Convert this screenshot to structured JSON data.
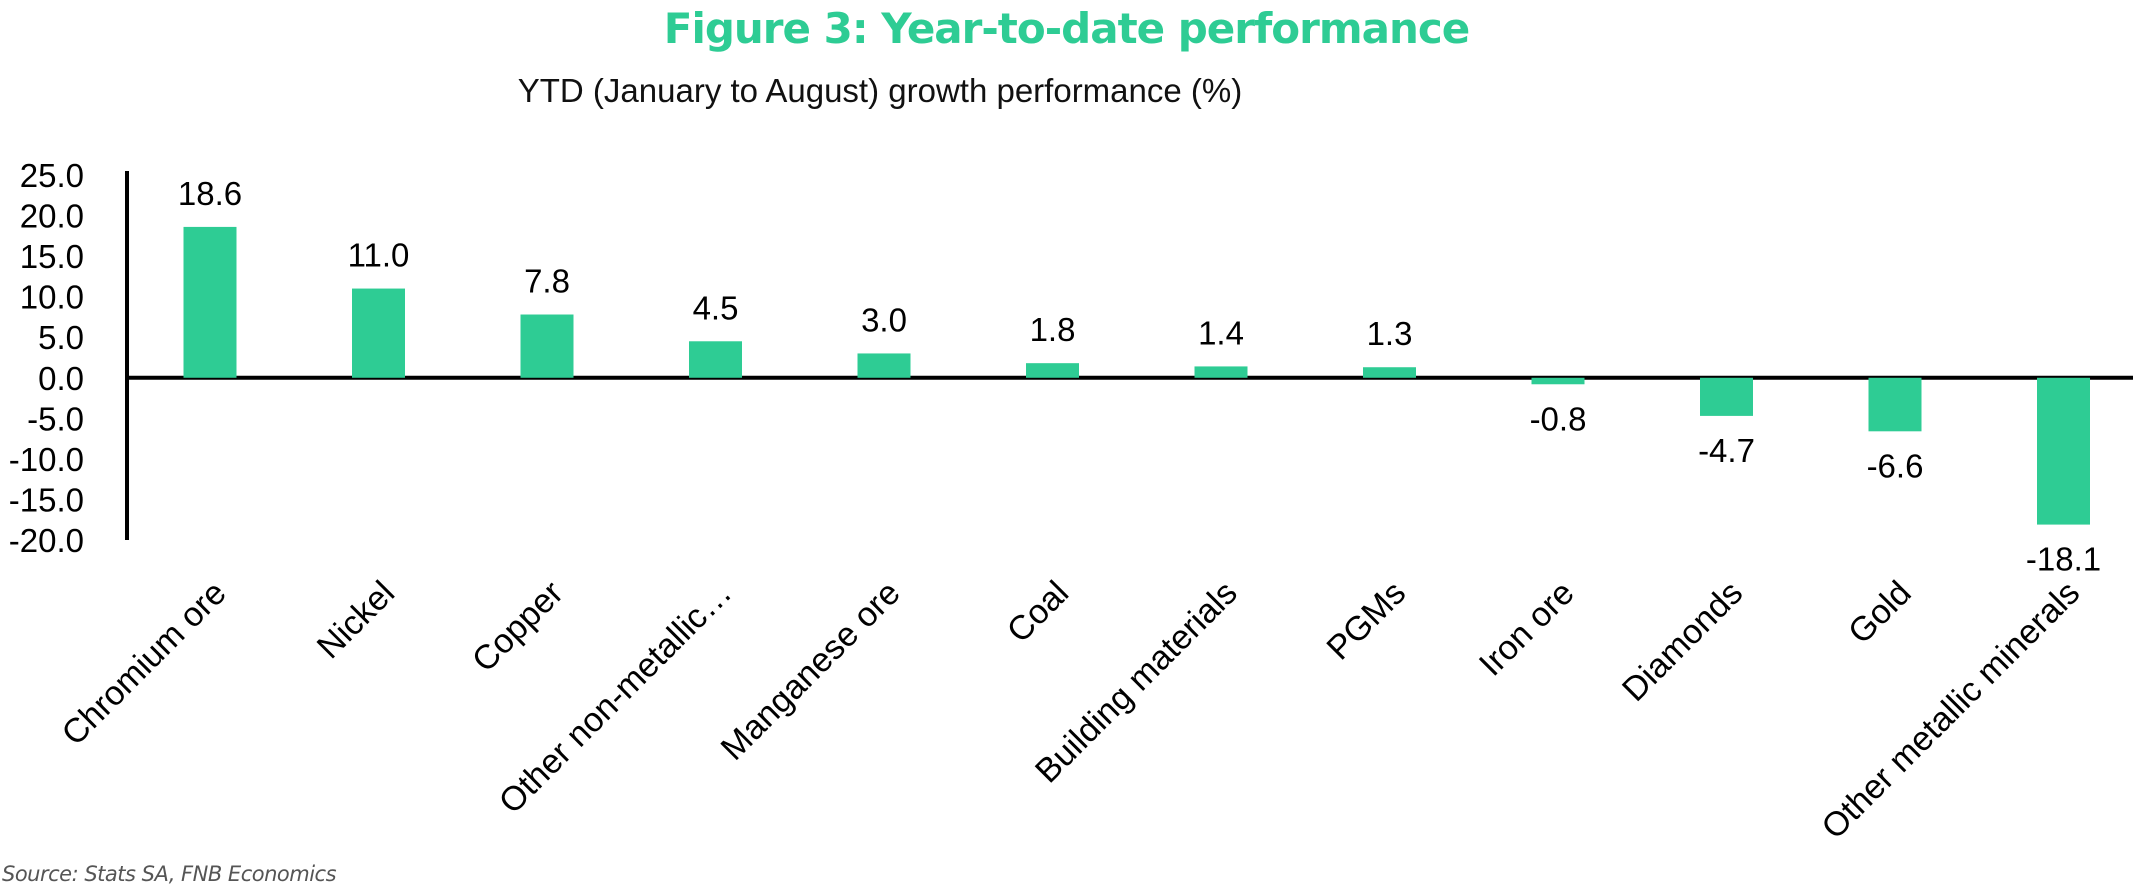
{
  "figure_title": "Figure 3: Year-to-date performance",
  "source": "Source: Stats SA, FNB Economics",
  "colors": {
    "accent": "#2ECC94",
    "bar": "#2ECC94",
    "axis": "#000000"
  },
  "chart_data": {
    "type": "bar",
    "title": "YTD (January to August) growth performance (%)",
    "xlabel": "",
    "ylabel": "",
    "ylim": [
      -20,
      25
    ],
    "yticks": [
      "25.0",
      "20.0",
      "15.0",
      "10.0",
      "5.0",
      "0.0",
      "-5.0",
      "-10.0",
      "-15.0",
      "-20.0"
    ],
    "categories": [
      "Chromium ore",
      "Nickel",
      "Copper",
      "Other non-metallic…",
      "Manganese ore",
      "Coal",
      "Building materials",
      "PGMs",
      "Iron ore",
      "Diamonds",
      "Gold",
      "Other metallic minerals"
    ],
    "values": [
      18.6,
      11.0,
      7.8,
      4.5,
      3.0,
      1.8,
      1.4,
      1.3,
      -0.8,
      -4.7,
      -6.6,
      -18.1
    ],
    "data_labels": [
      "18.6",
      "11.0",
      "7.8",
      "4.5",
      "3.0",
      "1.8",
      "1.4",
      "1.3",
      "-0.8",
      "-4.7",
      "-6.6",
      "-18.1"
    ],
    "grid": false,
    "legend": "none"
  }
}
